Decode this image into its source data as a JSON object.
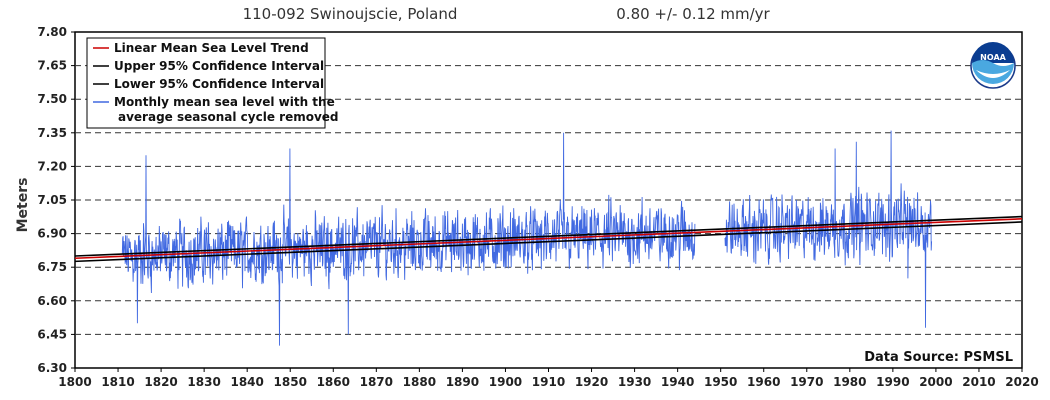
{
  "header": {
    "station": "110-092 Swinoujscie, Poland",
    "trend": "0.80 +/-  0.12 mm/yr"
  },
  "logo": {
    "text": "NOAA"
  },
  "colors": {
    "trend": "#cc0000",
    "ci": "#000000",
    "monthly": "#4169e1",
    "grid": "#333333"
  },
  "chart_data": {
    "type": "line",
    "title": "110-092 Swinoujscie, Poland",
    "subtitle": "0.80 +/-  0.12 mm/yr",
    "xlabel": "",
    "ylabel": "Meters",
    "xlim": [
      1800,
      2020
    ],
    "ylim": [
      6.3,
      7.8
    ],
    "x_ticks": [
      "1800",
      "1810",
      "1820",
      "1830",
      "1840",
      "1850",
      "1860",
      "1870",
      "1880",
      "1890",
      "1900",
      "1910",
      "1920",
      "1930",
      "1940",
      "1950",
      "1960",
      "1970",
      "1980",
      "1990",
      "2000",
      "2010",
      "2020"
    ],
    "y_ticks": [
      "6.30",
      "6.45",
      "6.60",
      "6.75",
      "6.90",
      "7.05",
      "7.20",
      "7.35",
      "7.50",
      "7.65",
      "7.80"
    ],
    "grid": true,
    "legend_position": "top-left",
    "annotation": "Data Source: PSMSL",
    "series": [
      {
        "name": "Linear Mean Sea Level Trend",
        "style": "line",
        "x": [
          1800,
          2020
        ],
        "y": [
          6.79,
          6.966
        ]
      },
      {
        "name": "Upper 95% Confidence Interval",
        "style": "line",
        "x": [
          1800,
          2020
        ],
        "y": [
          6.8,
          6.976
        ]
      },
      {
        "name": "Lower 95% Confidence Interval",
        "style": "line",
        "x": [
          1800,
          2020
        ],
        "y": [
          6.776,
          6.952
        ]
      },
      {
        "name": "Monthly mean sea level with the average seasonal cycle removed",
        "name_lines": [
          "Monthly mean sea level with the",
          "average seasonal cycle removed"
        ],
        "style": "noisy-line",
        "segments": [
          [
            1811,
            1944
          ],
          [
            1951,
            1999
          ]
        ],
        "key_points": [
          {
            "x": 1816.5,
            "y": 7.25
          },
          {
            "x": 1814.5,
            "y": 6.5
          },
          {
            "x": 1849.9,
            "y": 7.28
          },
          {
            "x": 1847.5,
            "y": 6.4
          },
          {
            "x": 1863.5,
            "y": 6.45
          },
          {
            "x": 1913.5,
            "y": 7.35
          },
          {
            "x": 1989.6,
            "y": 7.36
          },
          {
            "x": 1981.5,
            "y": 7.31
          },
          {
            "x": 1976.6,
            "y": 7.28
          },
          {
            "x": 1997.6,
            "y": 6.48
          },
          {
            "x": 1993.5,
            "y": 6.7
          }
        ]
      }
    ]
  }
}
